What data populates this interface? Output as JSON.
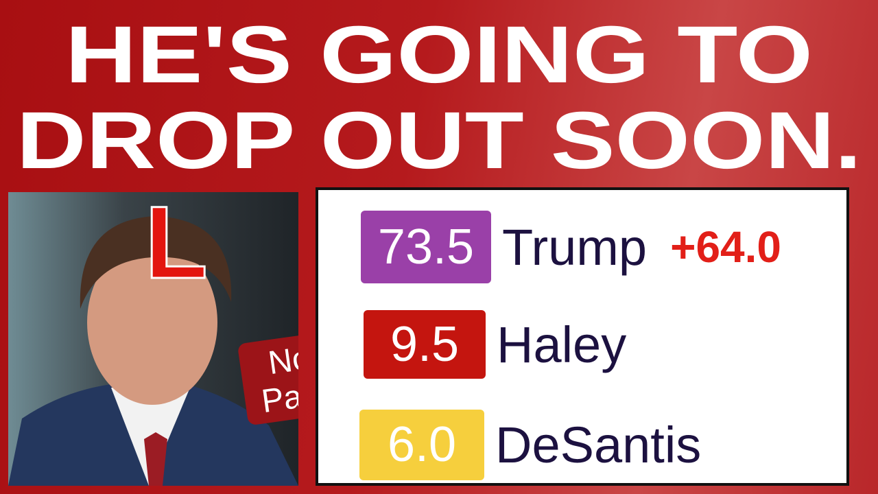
{
  "headline": {
    "lines": [
      "HE'S GOING TO",
      "DROP OUT SOON."
    ]
  },
  "photo": {
    "badge": "L",
    "caption": [
      "No",
      "Path."
    ]
  },
  "poll": {
    "rows": [
      {
        "value": "73.5",
        "name": "Trump",
        "margin": "+64.0"
      },
      {
        "value": "9.5",
        "name": "Haley"
      },
      {
        "value": "6.0",
        "name": "DeSantis"
      }
    ]
  }
}
